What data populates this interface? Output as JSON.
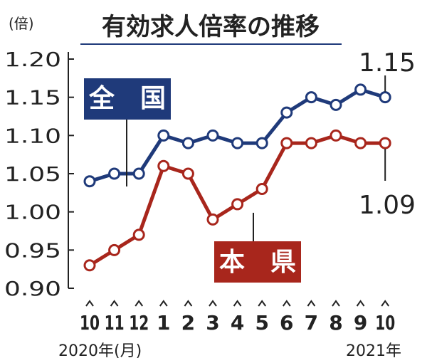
{
  "chart_data": {
    "type": "line",
    "title": "有効求人倍率の推移",
    "unit_label": "(倍)",
    "ylim": [
      0.9,
      1.2
    ],
    "y_ticks": [
      "1.20",
      "1.15",
      "1.10",
      "1.05",
      "1.00",
      "0.95",
      "0.90"
    ],
    "categories": [
      "10",
      "11",
      "12",
      "1",
      "2",
      "3",
      "4",
      "5",
      "6",
      "7",
      "8",
      "9",
      "10"
    ],
    "year_start_label": "2020年(月)",
    "year_end_label": "2021年",
    "series": [
      {
        "name": "全　国",
        "color": "#1f3a7a",
        "values": [
          1.04,
          1.05,
          1.05,
          1.1,
          1.09,
          1.1,
          1.09,
          1.09,
          1.13,
          1.15,
          1.14,
          1.16,
          1.15
        ],
        "end_label": "1.15"
      },
      {
        "name": "本　県",
        "color": "#a8261c",
        "values": [
          0.93,
          0.95,
          0.97,
          1.06,
          1.05,
          0.99,
          1.01,
          1.03,
          1.09,
          1.09,
          1.1,
          1.09,
          1.09
        ],
        "end_label": "1.09"
      }
    ]
  }
}
